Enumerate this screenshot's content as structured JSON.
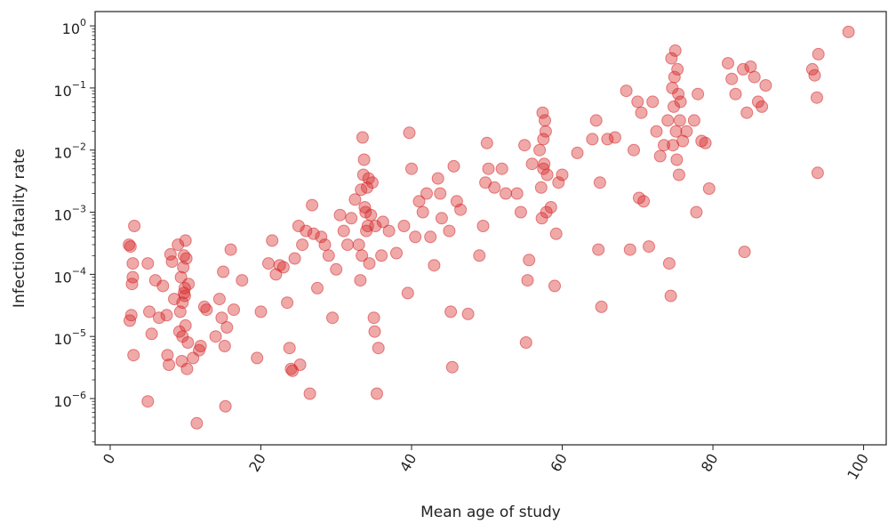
{
  "chart_data": {
    "type": "scatter",
    "xlabel": "Mean age of study",
    "ylabel": "Infection fatality rate",
    "x_scale": "linear",
    "y_scale": "log",
    "xlim": [
      -2,
      103
    ],
    "ylim": [
      1.8e-07,
      1.7
    ],
    "x_ticks": [
      0,
      20,
      40,
      60,
      80,
      100
    ],
    "x_tick_labels": [
      "0",
      "20",
      "40",
      "60",
      "80",
      "100"
    ],
    "y_ticks": [
      1e-06,
      1e-05,
      0.0001,
      0.001,
      0.01,
      0.1,
      1
    ],
    "y_tick_labels": [
      {
        "base": "10",
        "exp": "−6"
      },
      {
        "base": "10",
        "exp": "−5"
      },
      {
        "base": "10",
        "exp": "−4"
      },
      {
        "base": "10",
        "exp": "−3"
      },
      {
        "base": "10",
        "exp": "−2"
      },
      {
        "base": "10",
        "exp": "−1"
      },
      {
        "base": "10",
        "exp": "0"
      }
    ],
    "grid": false,
    "marker_color": "#d62728",
    "marker_opacity": 0.4,
    "series": [
      {
        "points": [
          [
            2.5,
            0.0003
          ],
          [
            2.8,
            2.2e-05
          ],
          [
            2.6,
            1.8e-05
          ],
          [
            3,
            0.00015
          ],
          [
            3.2,
            0.0006
          ],
          [
            3,
            9e-05
          ],
          [
            3.1,
            5e-06
          ],
          [
            2.9,
            7e-05
          ],
          [
            2.7,
            0.00028
          ],
          [
            5,
            0.00015
          ],
          [
            5.2,
            2.5e-05
          ],
          [
            5.5,
            1.1e-05
          ],
          [
            5,
            9e-07
          ],
          [
            6,
            8e-05
          ],
          [
            6.5,
            2e-05
          ],
          [
            7,
            6.5e-05
          ],
          [
            7.5,
            2.2e-05
          ],
          [
            7.6,
            5e-06
          ],
          [
            7.8,
            3.5e-06
          ],
          [
            8,
            0.00021
          ],
          [
            8.2,
            0.00016
          ],
          [
            8.5,
            4e-05
          ],
          [
            9,
            0.0003
          ],
          [
            9.2,
            1.2e-05
          ],
          [
            9.4,
            9e-05
          ],
          [
            9.5,
            4e-06
          ],
          [
            9.6,
            1e-05
          ],
          [
            9.8,
            0.0002
          ],
          [
            9.9,
            6e-05
          ],
          [
            10,
            0.00035
          ],
          [
            10,
            1.5e-05
          ],
          [
            10.2,
            3e-06
          ],
          [
            10.3,
            8e-06
          ],
          [
            9.7,
            0.00013
          ],
          [
            9.3,
            2.5e-05
          ],
          [
            9.9,
            4.5e-05
          ],
          [
            10.1,
            0.00018
          ],
          [
            9.6,
            3.5e-05
          ],
          [
            10.4,
            7e-05
          ],
          [
            9.8,
            5e-05
          ],
          [
            11,
            4.5e-06
          ],
          [
            11.5,
            4e-07
          ],
          [
            11.8,
            6e-06
          ],
          [
            12,
            7e-06
          ],
          [
            12.5,
            3e-05
          ],
          [
            12.8,
            2.7e-05
          ],
          [
            14,
            1e-05
          ],
          [
            14.5,
            4e-05
          ],
          [
            14.8,
            2e-05
          ],
          [
            15,
            0.00011
          ],
          [
            15.2,
            7e-06
          ],
          [
            15.3,
            7.5e-07
          ],
          [
            15.5,
            1.4e-05
          ],
          [
            16,
            0.00025
          ],
          [
            16.4,
            2.7e-05
          ],
          [
            17.5,
            8e-05
          ],
          [
            19.5,
            4.5e-06
          ],
          [
            20,
            2.5e-05
          ],
          [
            21,
            0.00015
          ],
          [
            21.5,
            0.00035
          ],
          [
            22,
            0.0001
          ],
          [
            22.5,
            0.00014
          ],
          [
            23,
            0.00013
          ],
          [
            23.5,
            3.5e-05
          ],
          [
            23.8,
            6.5e-06
          ],
          [
            24,
            3e-06
          ],
          [
            24.2,
            2.8e-06
          ],
          [
            24.5,
            0.00018
          ],
          [
            25,
            0.0006
          ],
          [
            25.2,
            3.5e-06
          ],
          [
            25.5,
            0.0003
          ],
          [
            26,
            0.0005
          ],
          [
            26.5,
            1.2e-06
          ],
          [
            26.8,
            0.0013
          ],
          [
            27,
            0.00045
          ],
          [
            27.5,
            6e-05
          ],
          [
            28,
            0.0004
          ],
          [
            28.5,
            0.0003
          ],
          [
            29,
            0.0002
          ],
          [
            29.5,
            2e-05
          ],
          [
            30,
            0.00012
          ],
          [
            30.5,
            0.0009
          ],
          [
            31,
            0.0005
          ],
          [
            31.5,
            0.0003
          ],
          [
            32,
            0.0008
          ],
          [
            32.5,
            0.0016
          ],
          [
            33,
            0.0003
          ],
          [
            33.2,
            8e-05
          ],
          [
            33.4,
            0.0002
          ],
          [
            33.5,
            0.016
          ],
          [
            33.7,
            0.007
          ],
          [
            33.8,
            0.0012
          ],
          [
            34,
            0.0005
          ],
          [
            34.1,
            0.0025
          ],
          [
            34.2,
            0.0006
          ],
          [
            33.6,
            0.004
          ],
          [
            33.9,
            0.001
          ],
          [
            34.3,
            0.0035
          ],
          [
            34.4,
            0.00015
          ],
          [
            33.3,
            0.0023
          ],
          [
            34.6,
            0.0009
          ],
          [
            34.8,
            0.003
          ],
          [
            35,
            2e-05
          ],
          [
            35.1,
            1.2e-05
          ],
          [
            35.2,
            0.0006
          ],
          [
            35.4,
            1.2e-06
          ],
          [
            35.6,
            6.5e-06
          ],
          [
            36,
            0.0002
          ],
          [
            36.2,
            0.0007
          ],
          [
            37,
            0.0005
          ],
          [
            38,
            0.00022
          ],
          [
            39,
            0.0006
          ],
          [
            39.5,
            5e-05
          ],
          [
            39.7,
            0.019
          ],
          [
            40,
            0.005
          ],
          [
            40.5,
            0.0004
          ],
          [
            41,
            0.0015
          ],
          [
            41.5,
            0.001
          ],
          [
            42,
            0.002
          ],
          [
            42.5,
            0.0004
          ],
          [
            43,
            0.00014
          ],
          [
            43.5,
            0.0035
          ],
          [
            43.8,
            0.002
          ],
          [
            44,
            0.0008
          ],
          [
            45,
            0.0005
          ],
          [
            45.2,
            2.5e-05
          ],
          [
            45.4,
            3.2e-06
          ],
          [
            45.6,
            0.0055
          ],
          [
            46,
            0.0015
          ],
          [
            46.5,
            0.0011
          ],
          [
            47.5,
            2.3e-05
          ],
          [
            49,
            0.0002
          ],
          [
            49.5,
            0.0006
          ],
          [
            49.8,
            0.003
          ],
          [
            50,
            0.013
          ],
          [
            50.2,
            0.005
          ],
          [
            51,
            0.0025
          ],
          [
            52,
            0.005
          ],
          [
            52.5,
            0.002
          ],
          [
            54,
            0.002
          ],
          [
            54.5,
            0.001
          ],
          [
            55,
            0.012
          ],
          [
            55.2,
            8e-06
          ],
          [
            55.4,
            8e-05
          ],
          [
            55.6,
            0.00017
          ],
          [
            56,
            0.006
          ],
          [
            57,
            0.01
          ],
          [
            57.2,
            0.0025
          ],
          [
            57.3,
            0.0008
          ],
          [
            57.4,
            0.04
          ],
          [
            57.5,
            0.015
          ],
          [
            57.6,
            0.006
          ],
          [
            57.7,
            0.03
          ],
          [
            57.8,
            0.02
          ],
          [
            57.9,
            0.001
          ],
          [
            57.5,
            0.005
          ],
          [
            58,
            0.004
          ],
          [
            58.5,
            0.0012
          ],
          [
            59,
            6.5e-05
          ],
          [
            59.2,
            0.00045
          ],
          [
            59.5,
            0.003
          ],
          [
            60,
            0.004
          ],
          [
            62,
            0.009
          ],
          [
            64,
            0.015
          ],
          [
            64.5,
            0.03
          ],
          [
            64.8,
            0.00025
          ],
          [
            65,
            0.003
          ],
          [
            65.2,
            3e-05
          ],
          [
            66,
            0.015
          ],
          [
            67,
            0.016
          ],
          [
            68.5,
            0.09
          ],
          [
            69,
            0.00025
          ],
          [
            69.5,
            0.01
          ],
          [
            70,
            0.06
          ],
          [
            70.2,
            0.0017
          ],
          [
            70.5,
            0.04
          ],
          [
            70.8,
            0.0015
          ],
          [
            71.5,
            0.00028
          ],
          [
            72,
            0.06
          ],
          [
            72.5,
            0.02
          ],
          [
            73,
            0.008
          ],
          [
            73.5,
            0.012
          ],
          [
            74,
            0.03
          ],
          [
            74.2,
            0.00015
          ],
          [
            74.4,
            4.5e-05
          ],
          [
            74.5,
            0.3
          ],
          [
            74.6,
            0.1
          ],
          [
            74.8,
            0.05
          ],
          [
            75,
            0.4
          ],
          [
            75.1,
            0.02
          ],
          [
            75.2,
            0.007
          ],
          [
            75.3,
            0.2
          ],
          [
            75.4,
            0.08
          ],
          [
            74.7,
            0.012
          ],
          [
            75.5,
            0.004
          ],
          [
            75.6,
            0.03
          ],
          [
            74.9,
            0.15
          ],
          [
            75.7,
            0.06
          ],
          [
            76,
            0.014
          ],
          [
            76.5,
            0.02
          ],
          [
            77.5,
            0.03
          ],
          [
            77.8,
            0.001
          ],
          [
            78,
            0.08
          ],
          [
            78.5,
            0.014
          ],
          [
            79,
            0.013
          ],
          [
            79.5,
            0.0024
          ],
          [
            82,
            0.25
          ],
          [
            82.5,
            0.14
          ],
          [
            83,
            0.08
          ],
          [
            84,
            0.2
          ],
          [
            84.2,
            0.00023
          ],
          [
            84.5,
            0.04
          ],
          [
            85,
            0.22
          ],
          [
            85.5,
            0.15
          ],
          [
            86,
            0.06
          ],
          [
            86.5,
            0.05
          ],
          [
            87,
            0.11
          ],
          [
            93.2,
            0.2
          ],
          [
            93.5,
            0.16
          ],
          [
            93.8,
            0.07
          ],
          [
            93.9,
            0.0043
          ],
          [
            94,
            0.35
          ],
          [
            98,
            0.8
          ]
        ]
      }
    ]
  }
}
